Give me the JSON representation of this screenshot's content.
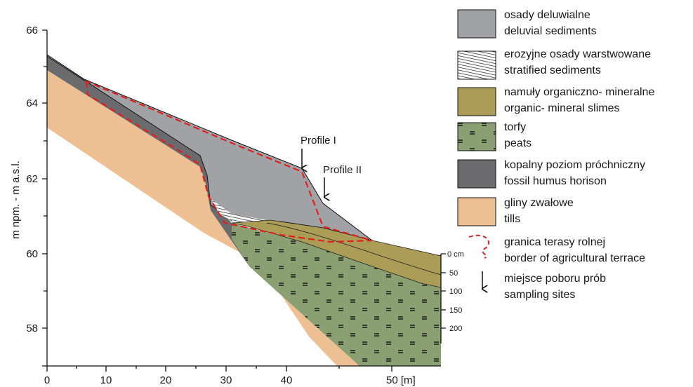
{
  "axes": {
    "y_label": "m npm. - m a.s.l.",
    "y_ticks": [
      "66",
      "64",
      "62",
      "60",
      "58"
    ],
    "x_ticks": [
      "0",
      "10",
      "20",
      "30",
      "40",
      "50 [m]"
    ]
  },
  "depth_scale": [
    "0 cm",
    "50",
    "100",
    "150",
    "200"
  ],
  "profiles": [
    "Profile  I",
    "Profile  II"
  ],
  "legend": [
    {
      "pl": "osady deluwialne",
      "en": "deluvial sediments"
    },
    {
      "pl": "erozyjne osady warstwowane",
      "en": "stratified sediments"
    },
    {
      "pl": "namuły organiczno- mineralne",
      "en": "organic- mineral slimes"
    },
    {
      "pl": "torfy",
      "en": "peats"
    },
    {
      "pl": "kopalny poziom próchniczny",
      "en": "fossil humus horison"
    },
    {
      "pl": "gliny zwałowe",
      "en": "tills"
    },
    {
      "pl": "granica terasy rolnej",
      "en": "border of agricultural terrace"
    },
    {
      "pl": "miejsce poboru prób",
      "en": "sampling sites"
    }
  ]
}
